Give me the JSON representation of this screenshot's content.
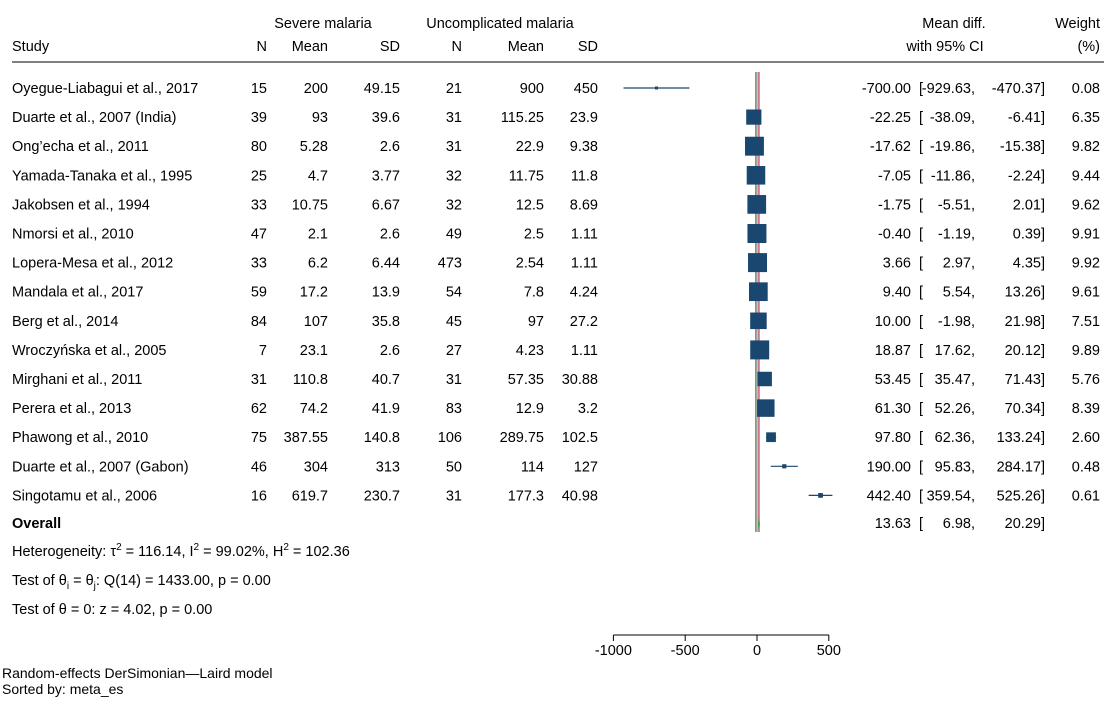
{
  "chart_data": {
    "type": "forest",
    "headers": {
      "study": "Study",
      "group1": "Severe malaria",
      "group2": "Uncomplicated malaria",
      "n": "N",
      "mean": "Mean",
      "sd": "SD",
      "effect_line1": "Mean diff.",
      "effect_line2": "with 95% CI",
      "weight_line1": "Weight",
      "weight_line2": "(%)"
    },
    "studies": [
      {
        "study": "Oyegue-Liabagui et al., 2017",
        "n1": "15",
        "mean1": "200",
        "sd1": "49.15",
        "n2": "21",
        "mean2": "900",
        "sd2": "450",
        "es": -700.0,
        "lo": -929.63,
        "hi": -470.37,
        "es_text": "-700.00",
        "lo_text": "-929.63,",
        "hi_text": "-470.37]",
        "weight": 0.08,
        "weight_text": "0.08"
      },
      {
        "study": "Duarte et al., 2007 (India)",
        "n1": "39",
        "mean1": "93",
        "sd1": "39.6",
        "n2": "31",
        "mean2": "115.25",
        "sd2": "23.9",
        "es": -22.25,
        "lo": -38.09,
        "hi": -6.41,
        "es_text": "-22.25",
        "lo_text": "-38.09,",
        "hi_text": "-6.41]",
        "weight": 6.35,
        "weight_text": "6.35"
      },
      {
        "study": "Ong’echa et al., 2011",
        "n1": "80",
        "mean1": "5.28",
        "sd1": "2.6",
        "n2": "31",
        "mean2": "22.9",
        "sd2": "9.38",
        "es": -17.62,
        "lo": -19.86,
        "hi": -15.38,
        "es_text": "-17.62",
        "lo_text": "-19.86,",
        "hi_text": "-15.38]",
        "weight": 9.82,
        "weight_text": "9.82"
      },
      {
        "study": "Yamada-Tanaka et al., 1995",
        "n1": "25",
        "mean1": "4.7",
        "sd1": "3.77",
        "n2": "32",
        "mean2": "11.75",
        "sd2": "11.8",
        "es": -7.05,
        "lo": -11.86,
        "hi": -2.24,
        "es_text": "-7.05",
        "lo_text": "-11.86,",
        "hi_text": "-2.24]",
        "weight": 9.44,
        "weight_text": "9.44"
      },
      {
        "study": "Jakobsen et al., 1994",
        "n1": "33",
        "mean1": "10.75",
        "sd1": "6.67",
        "n2": "32",
        "mean2": "12.5",
        "sd2": "8.69",
        "es": -1.75,
        "lo": -5.51,
        "hi": 2.01,
        "es_text": "-1.75",
        "lo_text": "-5.51,",
        "hi_text": "2.01]",
        "weight": 9.62,
        "weight_text": "9.62"
      },
      {
        "study": "Nmorsi et al., 2010",
        "n1": "47",
        "mean1": "2.1",
        "sd1": "2.6",
        "n2": "49",
        "mean2": "2.5",
        "sd2": "1.11",
        "es": -0.4,
        "lo": -1.19,
        "hi": 0.39,
        "es_text": "-0.40",
        "lo_text": "-1.19,",
        "hi_text": "0.39]",
        "weight": 9.91,
        "weight_text": "9.91"
      },
      {
        "study": "Lopera-Mesa et al., 2012",
        "n1": "33",
        "mean1": "6.2",
        "sd1": "6.44",
        "n2": "473",
        "mean2": "2.54",
        "sd2": "1.11",
        "es": 3.66,
        "lo": 2.97,
        "hi": 4.35,
        "es_text": "3.66",
        "lo_text": "2.97,",
        "hi_text": "4.35]",
        "weight": 9.92,
        "weight_text": "9.92"
      },
      {
        "study": "Mandala et al., 2017",
        "n1": "59",
        "mean1": "17.2",
        "sd1": "13.9",
        "n2": "54",
        "mean2": "7.8",
        "sd2": "4.24",
        "es": 9.4,
        "lo": 5.54,
        "hi": 13.26,
        "es_text": "9.40",
        "lo_text": "5.54,",
        "hi_text": "13.26]",
        "weight": 9.61,
        "weight_text": "9.61"
      },
      {
        "study": "Berg et al., 2014",
        "n1": "84",
        "mean1": "107",
        "sd1": "35.8",
        "n2": "45",
        "mean2": "97",
        "sd2": "27.2",
        "es": 10.0,
        "lo": -1.98,
        "hi": 21.98,
        "es_text": "10.00",
        "lo_text": "-1.98,",
        "hi_text": "21.98]",
        "weight": 7.51,
        "weight_text": "7.51"
      },
      {
        "study": "Wroczyńska et al., 2005",
        "n1": "7",
        "mean1": "23.1",
        "sd1": "2.6",
        "n2": "27",
        "mean2": "4.23",
        "sd2": "1.11",
        "es": 18.87,
        "lo": 17.62,
        "hi": 20.12,
        "es_text": "18.87",
        "lo_text": "17.62,",
        "hi_text": "20.12]",
        "weight": 9.89,
        "weight_text": "9.89"
      },
      {
        "study": "Mirghani et al., 2011",
        "n1": "31",
        "mean1": "110.8",
        "sd1": "40.7",
        "n2": "31",
        "mean2": "57.35",
        "sd2": "30.88",
        "es": 53.45,
        "lo": 35.47,
        "hi": 71.43,
        "es_text": "53.45",
        "lo_text": "35.47,",
        "hi_text": "71.43]",
        "weight": 5.76,
        "weight_text": "5.76"
      },
      {
        "study": "Perera et al., 2013",
        "n1": "62",
        "mean1": "74.2",
        "sd1": "41.9",
        "n2": "83",
        "mean2": "12.9",
        "sd2": "3.2",
        "es": 61.3,
        "lo": 52.26,
        "hi": 70.34,
        "es_text": "61.30",
        "lo_text": "52.26,",
        "hi_text": "70.34]",
        "weight": 8.39,
        "weight_text": "8.39"
      },
      {
        "study": "Phawong et al., 2010",
        "n1": "75",
        "mean1": "387.55",
        "sd1": "140.8",
        "n2": "106",
        "mean2": "289.75",
        "sd2": "102.5",
        "es": 97.8,
        "lo": 62.36,
        "hi": 133.24,
        "es_text": "97.80",
        "lo_text": "62.36,",
        "hi_text": "133.24]",
        "weight": 2.6,
        "weight_text": "2.60"
      },
      {
        "study": "Duarte et al., 2007 (Gabon)",
        "n1": "46",
        "mean1": "304",
        "sd1": "313",
        "n2": "50",
        "mean2": "114",
        "sd2": "127",
        "es": 190.0,
        "lo": 95.83,
        "hi": 284.17,
        "es_text": "190.00",
        "lo_text": "95.83,",
        "hi_text": "284.17]",
        "weight": 0.48,
        "weight_text": "0.48"
      },
      {
        "study": "Singotamu et al., 2006",
        "n1": "16",
        "mean1": "619.7",
        "sd1": "230.7",
        "n2": "31",
        "mean2": "177.3",
        "sd2": "40.98",
        "es": 442.4,
        "lo": 359.54,
        "hi": 525.26,
        "es_text": "442.40",
        "lo_text": "359.54,",
        "hi_text": "525.26]",
        "weight": 0.61,
        "weight_text": "0.61"
      }
    ],
    "overall": {
      "label": "Overall",
      "es": 13.63,
      "lo": 6.98,
      "hi": 20.29,
      "es_text": "13.63",
      "lo_text": "6.98,",
      "hi_text": "20.29]"
    },
    "stats": {
      "heterogeneity": [
        "Heterogeneity: ",
        "τ",
        "2",
        " = 116.14, I",
        "2",
        " = 99.02%, H",
        "2",
        " = 102.36"
      ],
      "test_homog": [
        "Test of θ",
        "i",
        " = θ",
        "j",
        ": Q(14) = 1433.00, p = 0.00"
      ],
      "test_overall": "Test of θ = 0: z = 4.02, p = 0.00"
    },
    "x_axis": {
      "ticks": [
        -1000,
        -500,
        0,
        500
      ],
      "tick_labels": [
        "-1000",
        "-500",
        "0",
        "500"
      ],
      "xlim": [
        -1000,
        500
      ]
    },
    "footnotes": [
      "Random-effects DerSimonian—Laird model",
      "Sorted by:  meta_es"
    ],
    "colors": {
      "marker": "#1a476f",
      "overall_line": "#c0c0c0",
      "null_line": "#3a7d3a",
      "overall_es_line": "#d46b8a",
      "diamond": "#4a9a4a"
    }
  }
}
